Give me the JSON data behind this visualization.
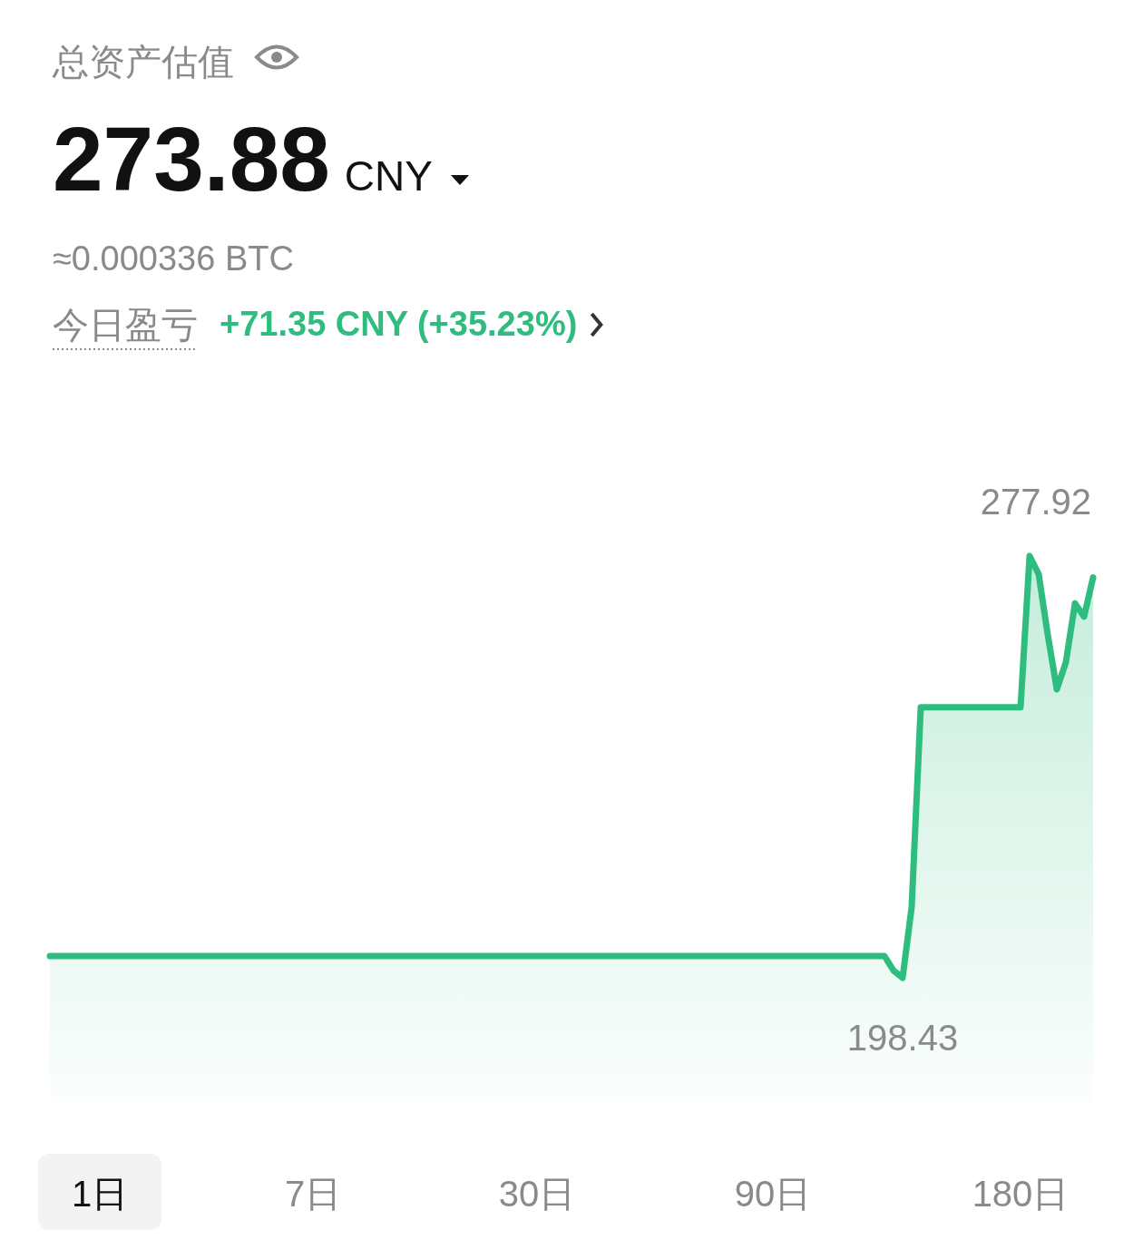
{
  "chart_data": {
    "type": "area",
    "title": "总资产估值",
    "subtitle": "273.88 CNY",
    "annotations": [
      "≈0.000336 BTC",
      "今日盈亏",
      "+71.35 CNY (+35.23%)",
      "1日",
      "7日",
      "30日",
      "90日",
      "180日"
    ],
    "categories": [
      null,
      null,
      null,
      null,
      null,
      null,
      null,
      null,
      null,
      null,
      null,
      null,
      null,
      null,
      null,
      null,
      null,
      null,
      null,
      null,
      null,
      null,
      null,
      null,
      null,
      null,
      null,
      null,
      null,
      null,
      null,
      null,
      null,
      null,
      null,
      null,
      null,
      null,
      null,
      null,
      null,
      null,
      null,
      null,
      null,
      null,
      null,
      null,
      null,
      null,
      null,
      null,
      null,
      null,
      null,
      null,
      null,
      null,
      null,
      null,
      null,
      null,
      null,
      null,
      null,
      null,
      null,
      null,
      null,
      null,
      null,
      null,
      null,
      null,
      null,
      null,
      null,
      null,
      null,
      null,
      null,
      null,
      null,
      null,
      null,
      null,
      null,
      null,
      null,
      null,
      null,
      null,
      null,
      null,
      null,
      null,
      null,
      null,
      null,
      null,
      null,
      null,
      null,
      null,
      null,
      null,
      null,
      null,
      null,
      null,
      null,
      null,
      null,
      null,
      null,
      null
    ],
    "series": [
      {
        "color": "#2ebd7f",
        "values": [
          202.53,
          202.53,
          202.53,
          202.53,
          202.53,
          202.53,
          202.53,
          202.53,
          202.53,
          202.53,
          202.53,
          202.53,
          202.53,
          202.53,
          202.53,
          202.53,
          202.53,
          202.53,
          202.53,
          202.53,
          202.53,
          202.53,
          202.53,
          202.53,
          202.53,
          202.53,
          202.53,
          202.53,
          202.53,
          202.53,
          202.53,
          202.53,
          202.53,
          202.53,
          202.53,
          202.53,
          202.53,
          202.53,
          202.53,
          202.53,
          202.53,
          202.53,
          202.53,
          202.53,
          202.53,
          202.53,
          202.53,
          202.53,
          202.53,
          202.53,
          202.53,
          202.53,
          202.53,
          202.53,
          202.53,
          202.53,
          202.53,
          202.53,
          202.53,
          202.53,
          202.53,
          202.53,
          202.53,
          202.53,
          202.53,
          202.53,
          202.53,
          202.53,
          202.53,
          202.53,
          202.53,
          202.53,
          202.53,
          202.53,
          202.53,
          202.53,
          202.53,
          202.53,
          202.53,
          202.53,
          202.53,
          202.53,
          202.53,
          202.53,
          202.53,
          202.53,
          202.53,
          202.53,
          202.53,
          202.53,
          202.53,
          202.53,
          202.53,
          199.8,
          198.43,
          211.8,
          249.4,
          249.4,
          249.4,
          249.4,
          249.4,
          249.4,
          249.4,
          249.4,
          249.4,
          249.4,
          249.4,
          249.4,
          277.92,
          274.5,
          263.1,
          252.8,
          257.9,
          269.0,
          266.5,
          273.88
        ],
        "value_labels": [
          null,
          null,
          null,
          null,
          null,
          null,
          null,
          null,
          null,
          null,
          null,
          null,
          null,
          null,
          null,
          null,
          null,
          null,
          null,
          null,
          null,
          null,
          null,
          null,
          null,
          null,
          null,
          null,
          null,
          null,
          null,
          null,
          null,
          null,
          null,
          null,
          null,
          null,
          null,
          null,
          null,
          null,
          null,
          null,
          null,
          null,
          null,
          null,
          null,
          null,
          null,
          null,
          null,
          null,
          null,
          null,
          null,
          null,
          null,
          null,
          null,
          null,
          null,
          null,
          null,
          null,
          null,
          null,
          null,
          null,
          null,
          null,
          null,
          null,
          null,
          null,
          null,
          null,
          null,
          null,
          null,
          null,
          null,
          null,
          null,
          null,
          null,
          null,
          null,
          null,
          null,
          null,
          null,
          null,
          "198.43",
          null,
          null,
          null,
          null,
          null,
          null,
          null,
          null,
          null,
          null,
          null,
          null,
          null,
          "277.92",
          null,
          null,
          null,
          null,
          null,
          null,
          null
        ]
      }
    ],
    "line_style": "solid"
  }
}
